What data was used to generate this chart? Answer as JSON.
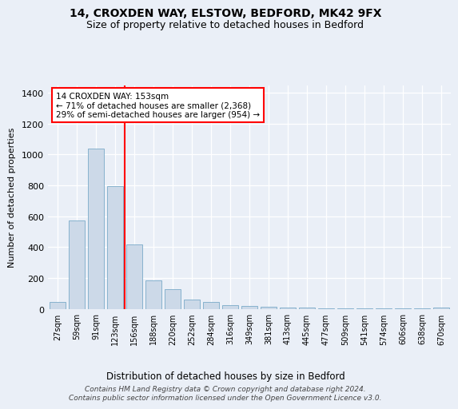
{
  "title": "14, CROXDEN WAY, ELSTOW, BEDFORD, MK42 9FX",
  "subtitle": "Size of property relative to detached houses in Bedford",
  "xlabel": "Distribution of detached houses by size in Bedford",
  "ylabel": "Number of detached properties",
  "categories": [
    "27sqm",
    "59sqm",
    "91sqm",
    "123sqm",
    "156sqm",
    "188sqm",
    "220sqm",
    "252sqm",
    "284sqm",
    "316sqm",
    "349sqm",
    "381sqm",
    "413sqm",
    "445sqm",
    "477sqm",
    "509sqm",
    "541sqm",
    "574sqm",
    "606sqm",
    "638sqm",
    "670sqm"
  ],
  "values": [
    47,
    575,
    1040,
    793,
    418,
    183,
    127,
    60,
    47,
    25,
    20,
    15,
    10,
    10,
    5,
    5,
    3,
    3,
    2,
    2,
    10
  ],
  "bar_color": "#ccd9e8",
  "bar_edge_color": "#7aaac8",
  "vline_color": "red",
  "vline_pos": 4.0,
  "annotation_text": "14 CROXDEN WAY: 153sqm\n← 71% of detached houses are smaller (2,368)\n29% of semi-detached houses are larger (954) →",
  "footer": "Contains HM Land Registry data © Crown copyright and database right 2024.\nContains public sector information licensed under the Open Government Licence v3.0.",
  "bg_color": "#eaeff7",
  "ylim": [
    0,
    1450
  ],
  "yticks": [
    0,
    200,
    400,
    600,
    800,
    1000,
    1200,
    1400
  ],
  "title_fontsize": 10,
  "subtitle_fontsize": 9
}
